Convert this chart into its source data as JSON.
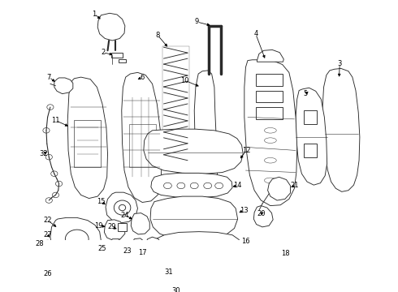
{
  "bg_color": "#ffffff",
  "line_color": "#2a2a2a",
  "text_color": "#000000",
  "fig_width": 4.9,
  "fig_height": 3.6,
  "dpi": 100,
  "label_fontsize": 6.0,
  "line_width": 0.65
}
